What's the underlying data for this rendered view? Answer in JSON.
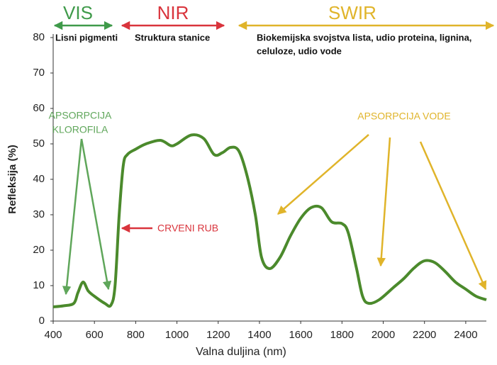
{
  "chart_data": {
    "type": "line",
    "xlabel": "Valna duljina (nm)",
    "ylabel": "Refleksija (%)",
    "x": [
      400,
      450,
      500,
      520,
      545,
      570,
      600,
      650,
      680,
      700,
      720,
      740,
      760,
      800,
      850,
      920,
      970,
      1000,
      1070,
      1130,
      1180,
      1220,
      1260,
      1300,
      1340,
      1380,
      1410,
      1450,
      1500,
      1550,
      1600,
      1650,
      1700,
      1750,
      1800,
      1830,
      1870,
      1900,
      1930,
      1980,
      2050,
      2100,
      2150,
      2200,
      2250,
      2300,
      2350,
      2400,
      2450,
      2500
    ],
    "series": [
      {
        "color": "#4b8a2c",
        "values": [
          4,
          4.3,
          5,
          8,
          11,
          8.5,
          7,
          5,
          4.5,
          10,
          30,
          44,
          47,
          48.5,
          50,
          51,
          49.5,
          50,
          52.5,
          51.5,
          47,
          47.5,
          49,
          48,
          41,
          30,
          18,
          14.8,
          18,
          24,
          29,
          32,
          32,
          28,
          27.5,
          25,
          15,
          7,
          5,
          6,
          9.5,
          12,
          15,
          17,
          16.5,
          14,
          11,
          9,
          7,
          6
        ]
      }
    ],
    "xlim": [
      400,
      2500
    ],
    "ylim": [
      0,
      80
    ],
    "xticks": [
      400,
      600,
      800,
      1000,
      1200,
      1400,
      1600,
      1800,
      2000,
      2200,
      2400
    ],
    "yticks": [
      0,
      10,
      20,
      30,
      40,
      50,
      60,
      70,
      80
    ],
    "grid": false,
    "annotations": {
      "regions": [
        {
          "name": "VIS",
          "description": [
            "Lisni pigmenti"
          ],
          "color": "#3f9a4a"
        },
        {
          "name": "NIR",
          "description": [
            "Struktura stanice"
          ],
          "color": "#d9343c"
        },
        {
          "name": "SWIR",
          "description": [
            "Biokemijska svojstva lista, udio proteina, lignina,",
            "celuloze, udio vode"
          ],
          "color": "#e0b42a"
        }
      ],
      "labels": [
        {
          "text": [
            "APSORPCIJA",
            "KLOROFILA"
          ],
          "color": "#5fa65a"
        },
        {
          "text": [
            "CRVENI RUB"
          ],
          "color": "#d9343c"
        },
        {
          "text": [
            "APSORPCIJA VODE"
          ],
          "color": "#e0b42a"
        }
      ]
    }
  }
}
